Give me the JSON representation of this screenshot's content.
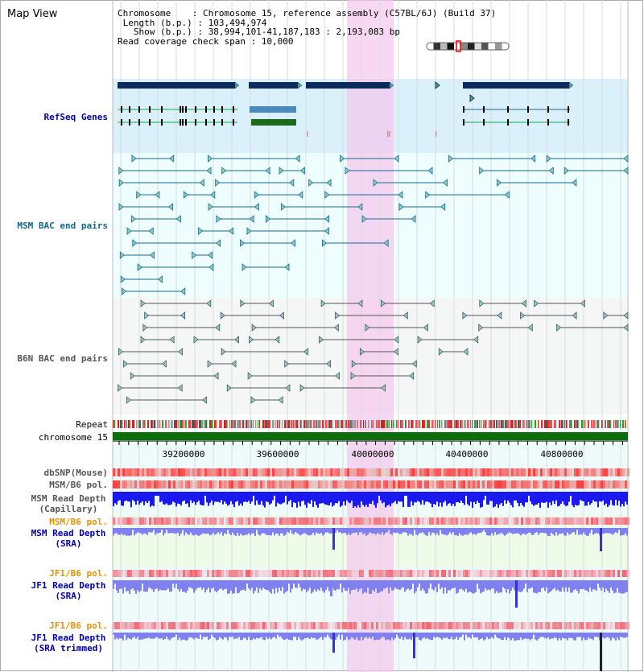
{
  "header": {
    "title": "Map View",
    "info_lines": [
      "Chromosome    : Chromosome 15, reference assembly (C57BL/6J) (Build 37)",
      " Length (b.p.) : 103,494,974",
      "   Show (b.p.) : 38,994,101-41,187,183 : 2,193,083 bp",
      "Read coverage check span : 10,000"
    ]
  },
  "tracks": {
    "refseq": "RefSeq Genes",
    "msm_bac": "MSM BAC end pairs",
    "b6n_bac": "B6N BAC end pairs",
    "repeat": "Repeat",
    "chromosome": "chromosome 15",
    "dbsnp": "dbSNP(Mouse)",
    "msm_b6_pol": "MSM/B6 pol.",
    "msm_depth_cap_1": "MSM Read Depth",
    "msm_depth_cap_2": "(Capillary)",
    "msm_b6_pol_2": "MSM/B6 pol.",
    "msm_depth_sra_1": "MSM Read Depth",
    "msm_depth_sra_2": "(SRA)",
    "jf1_b6_pol": "JF1/B6 pol.",
    "jf1_depth_sra_1": "JF1 Read Depth",
    "jf1_depth_sra_2": "(SRA)",
    "jf1_b6_pol_2": "JF1/B6 pol.",
    "jf1_depth_trim_1": "JF1 Read Depth",
    "jf1_depth_trim_2": "(SRA trimmed)"
  },
  "axis": {
    "ticks": [
      "39200000",
      "39600000",
      "40000000",
      "40400000",
      "40800000"
    ]
  },
  "colors": {
    "refseq_bg": "#daf1fb",
    "bac_bg": "#eefdfd",
    "highlight": "#f5c6ec",
    "refseq_navy": "#0c2a5e",
    "msm_bac": "#1a6a8a",
    "b6n_bac": "#555555",
    "chromosome_bar": "#0b6e0b",
    "depth_capillary": "#1a1aee",
    "depth_sra": "#8080ee",
    "orange_label": "#e69200",
    "blue_label": "#0000aa",
    "teal_label": "#116688",
    "gray_label": "#555555"
  }
}
